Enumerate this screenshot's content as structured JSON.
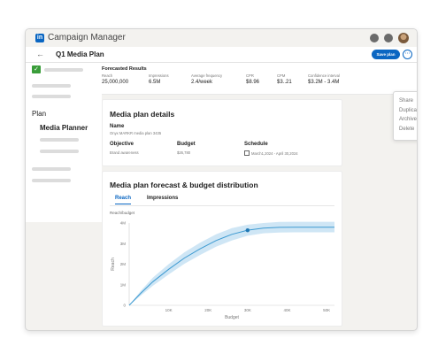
{
  "app": {
    "title": "Campaign Manager",
    "logo_letter": "in"
  },
  "header": {
    "back_icon": "arrow-left-icon",
    "plan_title": "Q1 Media Plan",
    "save_label": "Save plan",
    "more_icon": "ellipsis-icon"
  },
  "menu": {
    "items": [
      "Share",
      "Duplicate",
      "Archive",
      "Delete"
    ]
  },
  "sidebar": {
    "plan_label": "Plan",
    "media_planner_label": "Media Planner"
  },
  "forecast": {
    "title": "Forecasted Results",
    "metrics": [
      {
        "label": "Reach",
        "value": "25,000,000"
      },
      {
        "label": "Impressions",
        "value": "6.5M"
      },
      {
        "label": "Average frequency",
        "value": "2.4/week"
      },
      {
        "label": "CPR",
        "value": "$8.96"
      },
      {
        "label": "CPM",
        "value": "$3..21"
      },
      {
        "label": "Confidence interval",
        "value": "$3.2M - 3.4M"
      }
    ]
  },
  "details": {
    "title": "Media plan details",
    "name_label": "Name",
    "name_value": "Onyx MARKR media plan 3435",
    "objective_label": "Objective",
    "objective_value": "Brand awareness",
    "budget_label": "Budget",
    "budget_value": "$26,780",
    "schedule_label": "Schedule",
    "schedule_value": "March1,2024 - April 30,2024"
  },
  "forecast_chart": {
    "title": "Media plan forecast & budget distribution",
    "tabs": [
      "Reach",
      "Impressions"
    ],
    "active_tab": "Reach",
    "subtitle": "Reach/budget",
    "accent": "#0a66c2",
    "curve_color": "#3d9ad1",
    "band_color": "#cfe6f5"
  },
  "chart_data": {
    "type": "line",
    "xlabel": "Budget",
    "ylabel": "Reach",
    "x_ticks": [
      "10K",
      "20K",
      "30K",
      "40K",
      "50K"
    ],
    "y_ticks": [
      "0",
      "1M",
      "2M",
      "3M",
      "4M"
    ],
    "xlim": [
      0,
      52000
    ],
    "ylim": [
      0,
      4000000
    ],
    "x": [
      0,
      3000,
      6000,
      10000,
      14000,
      18000,
      22000,
      26000,
      30000,
      34000,
      38000,
      42000,
      46000,
      52000
    ],
    "y": [
      0,
      600000,
      1150000,
      1750000,
      2300000,
      2750000,
      3150000,
      3450000,
      3650000,
      3750000,
      3790000,
      3800000,
      3800000,
      3800000
    ],
    "band_upper": [
      0,
      720000,
      1350000,
      2000000,
      2580000,
      3050000,
      3450000,
      3750000,
      3920000,
      4000000,
      4050000,
      4060000,
      4060000,
      4060000
    ],
    "band_lower": [
      0,
      480000,
      950000,
      1500000,
      2020000,
      2450000,
      2850000,
      3150000,
      3380000,
      3500000,
      3540000,
      3550000,
      3550000,
      3550000
    ],
    "marker": {
      "x": 30000,
      "y": 3650000
    }
  }
}
